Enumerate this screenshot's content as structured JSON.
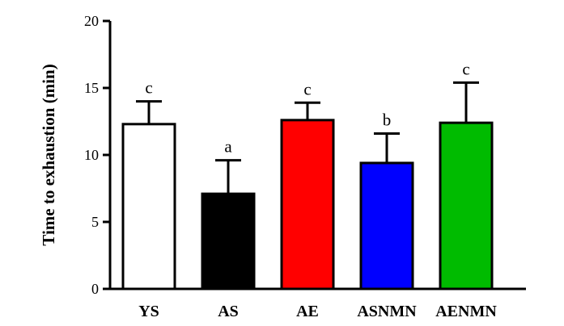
{
  "chart_data": {
    "type": "bar",
    "title": "",
    "xlabel": "",
    "ylabel": "Time to exhaustion (min)",
    "ylim": [
      0,
      20
    ],
    "yticks": [
      0,
      5,
      10,
      15,
      20
    ],
    "grid": false,
    "categories": [
      "YS",
      "AS",
      "AE",
      "ASNMN",
      "AENMN"
    ],
    "values": [
      12.3,
      7.1,
      12.6,
      9.4,
      12.4
    ],
    "errors": [
      1.7,
      2.5,
      1.3,
      2.2,
      3.0
    ],
    "significance": [
      "c",
      "a",
      "c",
      "b",
      "c"
    ],
    "bar_colors": [
      "#ffffff",
      "#000000",
      "#ff0000",
      "#0000ff",
      "#00bb00"
    ]
  }
}
